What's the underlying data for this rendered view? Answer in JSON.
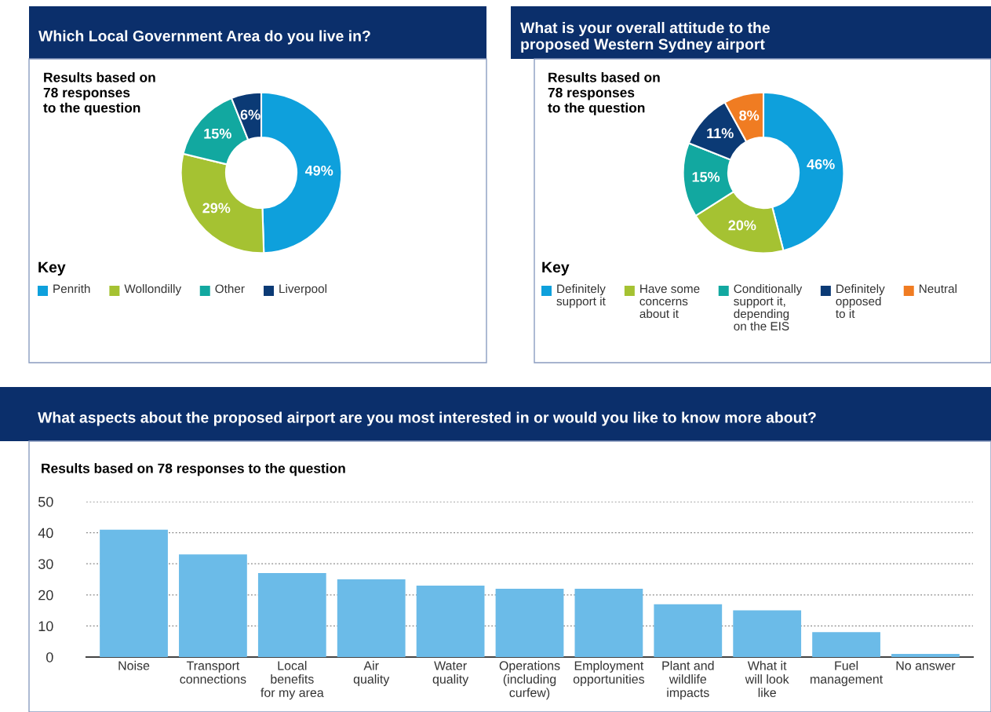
{
  "chart_data": [
    {
      "type": "donut",
      "title": "Which Local Government Area do you live in?",
      "subtitle": "Results based on\n78 responses\nto the question",
      "legend_title": "Key",
      "legend": "bottom",
      "categories": [
        "Penrith",
        "Wollondilly",
        "Other",
        "Liverpool"
      ],
      "values": [
        49,
        29,
        15,
        6
      ],
      "colors": [
        "#0ea0dc",
        "#a5c232",
        "#12a8a0",
        "#0b3a75"
      ],
      "value_labels": [
        "49%",
        "29%",
        "15%",
        "6%"
      ]
    },
    {
      "type": "donut",
      "title": "What is your overall attitude to the\nproposed Western Sydney airport",
      "subtitle": "Results based on\n78 responses\nto the question",
      "legend_title": "Key",
      "legend": "bottom",
      "categories": [
        "Definitely\nsupport it",
        "Have some\nconcerns\nabout it",
        "Conditionally\nsupport it,\ndepending\non the EIS",
        "Definitely\nopposed\nto it",
        "Neutral"
      ],
      "values": [
        46,
        20,
        15,
        11,
        8
      ],
      "colors": [
        "#0ea0dc",
        "#a5c232",
        "#12a8a0",
        "#0b3a75",
        "#f07c22"
      ],
      "value_labels": [
        "46%",
        "20%",
        "15%",
        "11%",
        "8%"
      ]
    },
    {
      "type": "bar",
      "title": "What aspects about the proposed airport are you most interested in or would you like to know more about?",
      "subtitle": "Results based on 78 responses to the question",
      "categories": [
        "Noise",
        "Transport\nconnections",
        "Local\nbenefits\nfor my area",
        "Air\nquality",
        "Water\nquality",
        "Operations\n(including\ncurfew)",
        "Employment\nopportunities",
        "Plant and\nwildlife\nimpacts",
        "What it\nwill look\nlike",
        "Fuel\nmanagement",
        "No answer"
      ],
      "values": [
        41,
        33,
        27,
        25,
        23,
        22,
        22,
        17,
        15,
        8,
        1
      ],
      "color": "#6bbbe8",
      "ylim": [
        0,
        50
      ],
      "yticks": [
        0,
        10,
        20,
        30,
        40,
        50
      ],
      "grid": "y"
    }
  ]
}
